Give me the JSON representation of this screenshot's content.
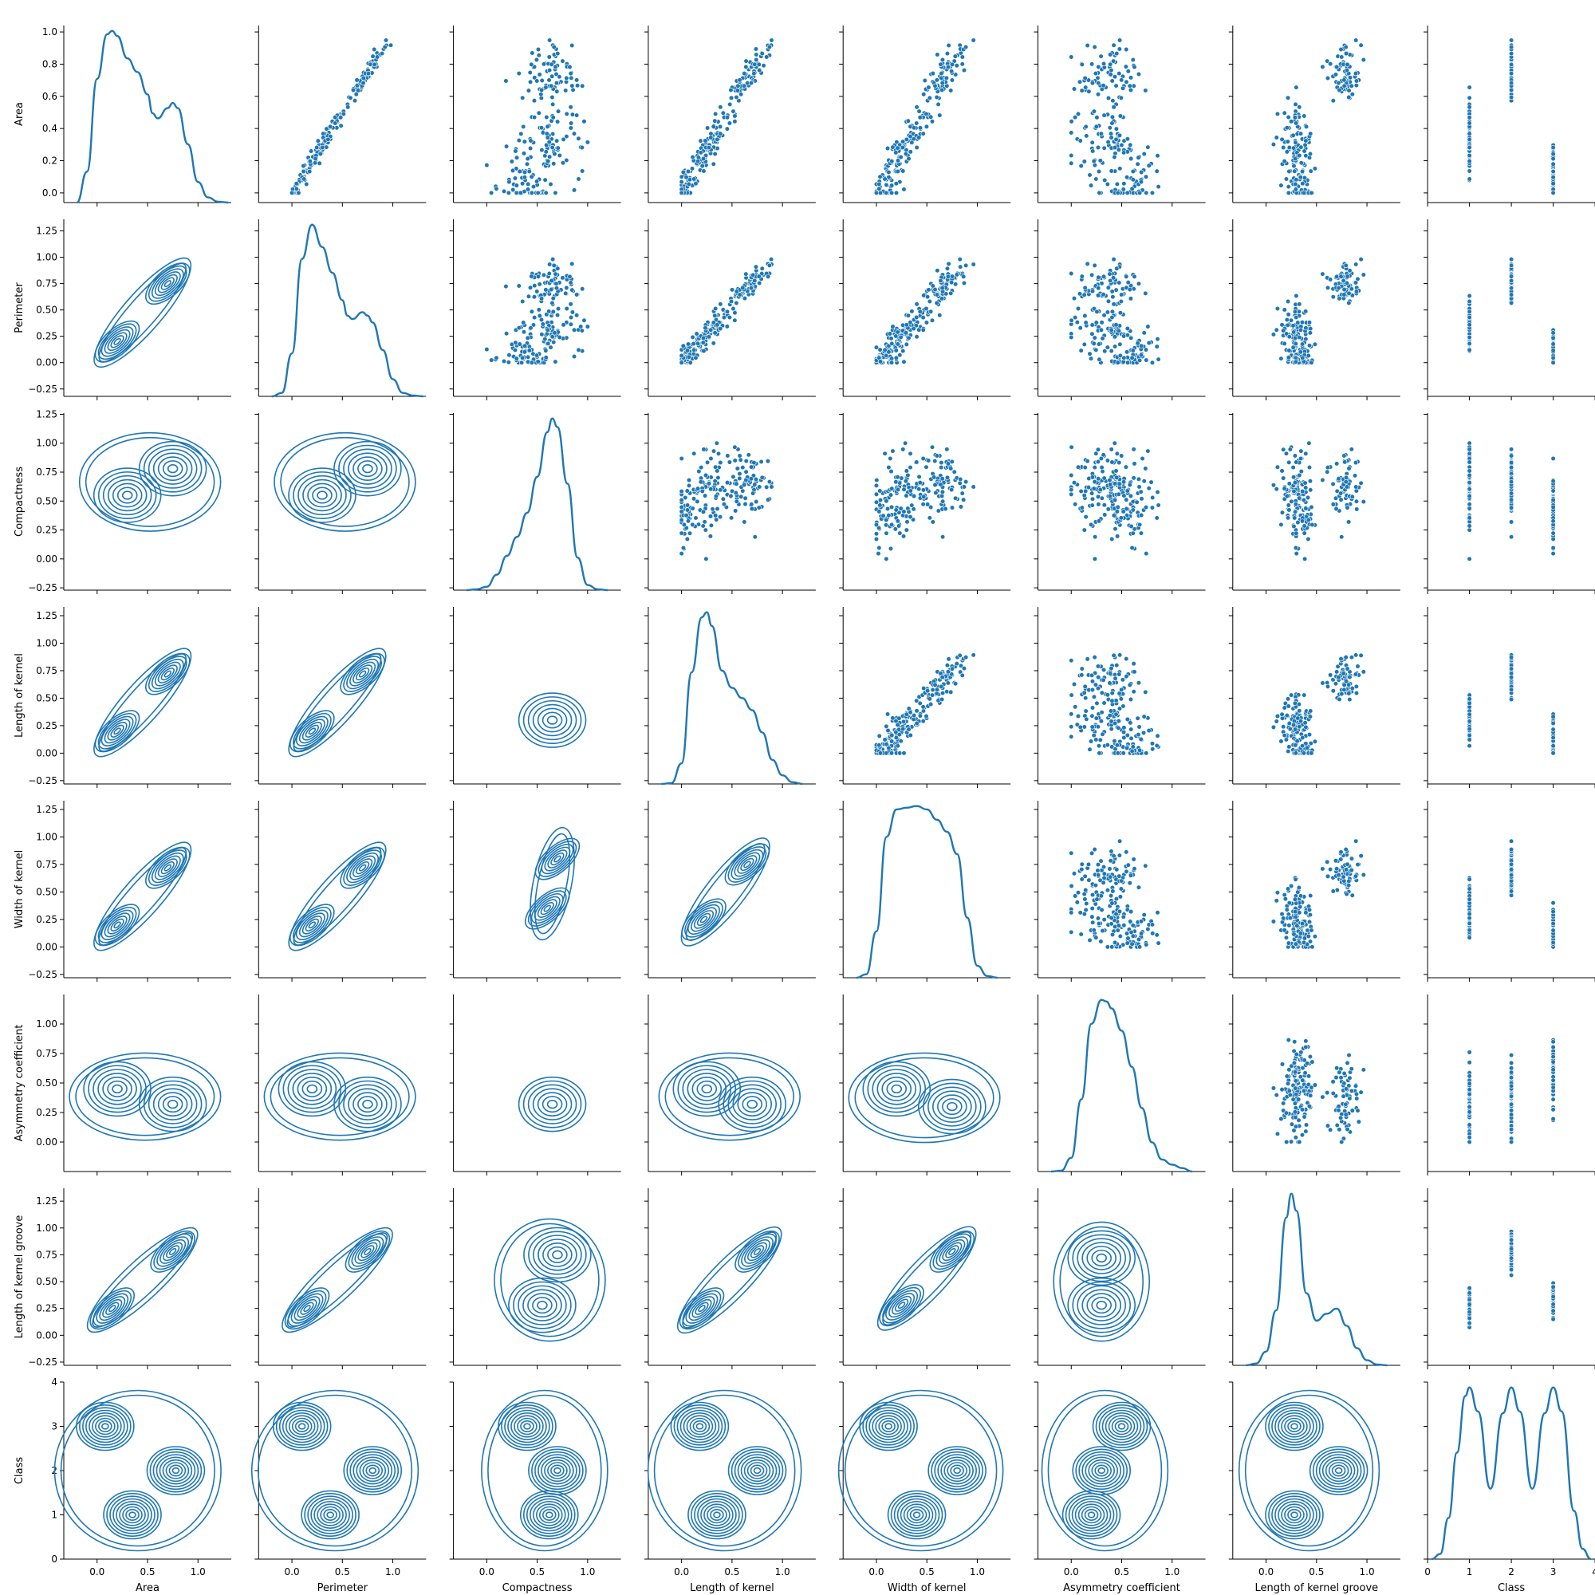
{
  "chart_data": {
    "type": "pairplot",
    "title": "",
    "series_color": "#1f77b4",
    "variables": [
      "Area",
      "Perimeter",
      "Compactness",
      "Length of kernel",
      "Width of kernel",
      "Asymmetry coefficient",
      "Length of kernel groove",
      "Class"
    ],
    "axes": {
      "x": [
        {
          "lim": [
            -0.33,
            1.33
          ],
          "ticks": [
            "0.0",
            "0.5",
            "1.0"
          ]
        },
        {
          "lim": [
            -0.33,
            1.33
          ],
          "ticks": [
            "0.0",
            "0.5",
            "1.0"
          ]
        },
        {
          "lim": [
            -0.33,
            1.33
          ],
          "ticks": [
            "0.0",
            "0.5",
            "1.0"
          ]
        },
        {
          "lim": [
            -0.33,
            1.33
          ],
          "ticks": [
            "0.0",
            "0.5",
            "1.0"
          ]
        },
        {
          "lim": [
            -0.33,
            1.33
          ],
          "ticks": [
            "0.0",
            "0.5",
            "1.0"
          ]
        },
        {
          "lim": [
            -0.33,
            1.33
          ],
          "ticks": [
            "0.0",
            "0.5",
            "1.0"
          ]
        },
        {
          "lim": [
            -0.33,
            1.33
          ],
          "ticks": [
            "0.0",
            "0.5",
            "1.0"
          ]
        },
        {
          "lim": [
            0.0,
            4.0
          ],
          "ticks": [
            "0",
            "1",
            "2",
            "3",
            "4"
          ]
        }
      ],
      "y": [
        {
          "lim": [
            -0.06,
            1.04
          ],
          "ticks": [
            "0.0",
            "0.2",
            "0.4",
            "0.6",
            "0.8",
            "1.0"
          ]
        },
        {
          "lim": [
            -0.32,
            1.36
          ],
          "ticks": [
            "−0.25",
            "0.00",
            "0.25",
            "0.50",
            "0.75",
            "1.00",
            "1.25"
          ]
        },
        {
          "lim": [
            -0.27,
            1.26
          ],
          "ticks": [
            "−0.25",
            "0.00",
            "0.25",
            "0.50",
            "0.75",
            "1.00",
            "1.25"
          ]
        },
        {
          "lim": [
            -0.28,
            1.33
          ],
          "ticks": [
            "−0.25",
            "0.00",
            "0.25",
            "0.50",
            "0.75",
            "1.00",
            "1.25"
          ]
        },
        {
          "lim": [
            -0.28,
            1.33
          ],
          "ticks": [
            "−0.25",
            "0.00",
            "0.25",
            "0.50",
            "0.75",
            "1.00",
            "1.25"
          ]
        },
        {
          "lim": [
            -0.25,
            1.25
          ],
          "ticks": [
            "0.00",
            "0.25",
            "0.50",
            "0.75",
            "1.00"
          ]
        },
        {
          "lim": [
            -0.28,
            1.37
          ],
          "ticks": [
            "−0.25",
            "0.00",
            "0.25",
            "0.50",
            "0.75",
            "1.00",
            "1.25"
          ]
        },
        {
          "lim": [
            0.0,
            4.0
          ],
          "ticks": [
            "0",
            "1",
            "2",
            "3",
            "4"
          ]
        }
      ]
    },
    "diagonal_kde": [
      {
        "x": [
          -0.2,
          -0.1,
          0.0,
          0.1,
          0.15,
          0.2,
          0.3,
          0.4,
          0.5,
          0.55,
          0.6,
          0.7,
          0.75,
          0.8,
          0.9,
          1.0,
          1.1,
          1.2,
          1.3
        ],
        "density": [
          0.0,
          0.18,
          0.72,
          0.98,
          1.0,
          0.97,
          0.84,
          0.76,
          0.63,
          0.52,
          0.49,
          0.55,
          0.58,
          0.55,
          0.34,
          0.12,
          0.03,
          0.005,
          0.0
        ]
      },
      {
        "x": [
          -0.2,
          -0.1,
          0.0,
          0.1,
          0.2,
          0.3,
          0.4,
          0.5,
          0.55,
          0.6,
          0.7,
          0.75,
          0.8,
          0.9,
          1.0,
          1.1,
          1.2,
          1.3
        ],
        "density": [
          0.0,
          0.02,
          0.25,
          0.8,
          1.0,
          0.87,
          0.72,
          0.56,
          0.47,
          0.45,
          0.49,
          0.47,
          0.43,
          0.27,
          0.1,
          0.02,
          0.005,
          0.0
        ]
      },
      {
        "x": [
          -0.2,
          -0.1,
          0.0,
          0.1,
          0.2,
          0.3,
          0.4,
          0.5,
          0.6,
          0.65,
          0.7,
          0.8,
          0.9,
          1.0,
          1.1,
          1.2
        ],
        "density": [
          0.0,
          0.005,
          0.02,
          0.09,
          0.2,
          0.31,
          0.45,
          0.66,
          0.92,
          1.0,
          0.95,
          0.62,
          0.19,
          0.03,
          0.005,
          0.0
        ]
      },
      {
        "x": [
          -0.2,
          -0.1,
          0.0,
          0.1,
          0.2,
          0.25,
          0.3,
          0.4,
          0.5,
          0.6,
          0.7,
          0.8,
          0.9,
          1.0,
          1.1,
          1.2
        ],
        "density": [
          0.0,
          0.005,
          0.12,
          0.65,
          0.97,
          1.0,
          0.92,
          0.66,
          0.56,
          0.5,
          0.43,
          0.3,
          0.14,
          0.05,
          0.01,
          0.0
        ]
      },
      {
        "x": [
          -0.2,
          -0.1,
          0.0,
          0.1,
          0.2,
          0.3,
          0.4,
          0.5,
          0.6,
          0.7,
          0.8,
          0.9,
          1.0,
          1.1,
          1.2
        ],
        "density": [
          0.0,
          0.02,
          0.27,
          0.82,
          0.98,
          0.99,
          1.0,
          0.98,
          0.92,
          0.85,
          0.72,
          0.35,
          0.07,
          0.01,
          0.0
        ]
      },
      {
        "x": [
          -0.2,
          -0.1,
          0.0,
          0.1,
          0.2,
          0.3,
          0.35,
          0.4,
          0.5,
          0.6,
          0.7,
          0.8,
          0.9,
          1.0,
          1.1,
          1.2
        ],
        "density": [
          0.0,
          0.005,
          0.08,
          0.42,
          0.86,
          1.0,
          0.99,
          0.95,
          0.82,
          0.61,
          0.37,
          0.17,
          0.07,
          0.04,
          0.02,
          0.0
        ]
      },
      {
        "x": [
          -0.2,
          -0.1,
          0.0,
          0.1,
          0.2,
          0.25,
          0.3,
          0.4,
          0.5,
          0.6,
          0.7,
          0.8,
          0.9,
          1.0,
          1.1,
          1.2
        ],
        "density": [
          0.0,
          0.01,
          0.08,
          0.32,
          0.86,
          1.0,
          0.9,
          0.42,
          0.26,
          0.3,
          0.33,
          0.23,
          0.1,
          0.03,
          0.005,
          0.0
        ]
      },
      {
        "x": [
          0.1,
          0.3,
          0.5,
          0.7,
          0.9,
          1.0,
          1.2,
          1.5,
          1.8,
          2.0,
          2.2,
          2.5,
          2.8,
          3.0,
          3.2,
          3.5,
          3.7,
          3.9
        ],
        "density": [
          0.0,
          0.03,
          0.24,
          0.62,
          0.95,
          1.0,
          0.86,
          0.41,
          0.85,
          1.0,
          0.86,
          0.41,
          0.85,
          1.0,
          0.86,
          0.28,
          0.06,
          0.0
        ]
      }
    ],
    "upper_scatter": {
      "n_points": 210,
      "pairs": [
        {
          "row": 0,
          "col": 1,
          "relationship": "strong-linear"
        },
        {
          "row": 0,
          "col": 2,
          "relationship": "fan"
        },
        {
          "row": 0,
          "col": 3,
          "relationship": "linear"
        },
        {
          "row": 0,
          "col": 4,
          "relationship": "linear"
        },
        {
          "row": 0,
          "col": 5,
          "relationship": "weak-negative"
        },
        {
          "row": 0,
          "col": 6,
          "relationship": "two-cluster"
        },
        {
          "row": 0,
          "col": 7,
          "relationship": "by-class"
        },
        {
          "row": 1,
          "col": 2,
          "relationship": "fan"
        },
        {
          "row": 1,
          "col": 3,
          "relationship": "linear"
        },
        {
          "row": 1,
          "col": 4,
          "relationship": "linear"
        },
        {
          "row": 1,
          "col": 5,
          "relationship": "weak-negative"
        },
        {
          "row": 1,
          "col": 6,
          "relationship": "two-cluster"
        },
        {
          "row": 1,
          "col": 7,
          "relationship": "by-class"
        },
        {
          "row": 2,
          "col": 3,
          "relationship": "cloud"
        },
        {
          "row": 2,
          "col": 4,
          "relationship": "curved"
        },
        {
          "row": 2,
          "col": 5,
          "relationship": "weak-negative"
        },
        {
          "row": 2,
          "col": 6,
          "relationship": "two-cluster"
        },
        {
          "row": 2,
          "col": 7,
          "relationship": "by-class"
        },
        {
          "row": 3,
          "col": 4,
          "relationship": "linear"
        },
        {
          "row": 3,
          "col": 5,
          "relationship": "weak-negative"
        },
        {
          "row": 3,
          "col": 6,
          "relationship": "linear"
        },
        {
          "row": 3,
          "col": 7,
          "relationship": "by-class"
        },
        {
          "row": 4,
          "col": 5,
          "relationship": "weak-negative"
        },
        {
          "row": 4,
          "col": 6,
          "relationship": "two-cluster"
        },
        {
          "row": 4,
          "col": 7,
          "relationship": "by-class"
        },
        {
          "row": 5,
          "col": 6,
          "relationship": "two-cluster"
        },
        {
          "row": 5,
          "col": 7,
          "relationship": "by-class"
        },
        {
          "row": 6,
          "col": 7,
          "relationship": "by-class"
        }
      ]
    },
    "lower_kde_contours": {
      "levels": 9,
      "pairs": [
        {
          "row": 1,
          "col": 0,
          "modes": [
            [
              0.2,
              0.2
            ],
            [
              0.7,
              0.75
            ]
          ],
          "shape": "diagonal"
        },
        {
          "row": 2,
          "col": 0,
          "modes": [
            [
              0.3,
              0.55
            ],
            [
              0.75,
              0.78
            ]
          ],
          "shape": "blob"
        },
        {
          "row": 2,
          "col": 1,
          "modes": [
            [
              0.3,
              0.55
            ],
            [
              0.75,
              0.78
            ]
          ],
          "shape": "blob"
        },
        {
          "row": 3,
          "col": 0,
          "modes": [
            [
              0.2,
              0.2
            ],
            [
              0.7,
              0.72
            ]
          ],
          "shape": "diagonal"
        },
        {
          "row": 3,
          "col": 1,
          "modes": [
            [
              0.2,
              0.2
            ],
            [
              0.7,
              0.72
            ]
          ],
          "shape": "diagonal"
        },
        {
          "row": 3,
          "col": 2,
          "modes": [
            [
              0.65,
              0.3
            ]
          ],
          "shape": "blob"
        },
        {
          "row": 4,
          "col": 0,
          "modes": [
            [
              0.2,
              0.2
            ],
            [
              0.7,
              0.72
            ]
          ],
          "shape": "diagonal"
        },
        {
          "row": 4,
          "col": 1,
          "modes": [
            [
              0.2,
              0.2
            ],
            [
              0.7,
              0.72
            ]
          ],
          "shape": "diagonal"
        },
        {
          "row": 4,
          "col": 2,
          "modes": [
            [
              0.6,
              0.35
            ],
            [
              0.7,
              0.8
            ]
          ],
          "shape": "diagonal"
        },
        {
          "row": 4,
          "col": 3,
          "modes": [
            [
              0.22,
              0.25
            ],
            [
              0.65,
              0.75
            ]
          ],
          "shape": "diagonal"
        },
        {
          "row": 5,
          "col": 0,
          "modes": [
            [
              0.2,
              0.45
            ],
            [
              0.75,
              0.32
            ]
          ],
          "shape": "blob"
        },
        {
          "row": 5,
          "col": 1,
          "modes": [
            [
              0.2,
              0.45
            ],
            [
              0.75,
              0.32
            ]
          ],
          "shape": "blob"
        },
        {
          "row": 5,
          "col": 2,
          "modes": [
            [
              0.65,
              0.32
            ]
          ],
          "shape": "blob"
        },
        {
          "row": 5,
          "col": 3,
          "modes": [
            [
              0.25,
              0.45
            ],
            [
              0.7,
              0.32
            ]
          ],
          "shape": "blob"
        },
        {
          "row": 5,
          "col": 4,
          "modes": [
            [
              0.2,
              0.45
            ],
            [
              0.75,
              0.3
            ]
          ],
          "shape": "blob"
        },
        {
          "row": 6,
          "col": 0,
          "modes": [
            [
              0.15,
              0.25
            ],
            [
              0.75,
              0.78
            ]
          ],
          "shape": "diagonal"
        },
        {
          "row": 6,
          "col": 1,
          "modes": [
            [
              0.15,
              0.25
            ],
            [
              0.75,
              0.78
            ]
          ],
          "shape": "diagonal"
        },
        {
          "row": 6,
          "col": 2,
          "modes": [
            [
              0.55,
              0.28
            ],
            [
              0.7,
              0.75
            ]
          ],
          "shape": "blob"
        },
        {
          "row": 6,
          "col": 3,
          "modes": [
            [
              0.2,
              0.25
            ],
            [
              0.75,
              0.78
            ]
          ],
          "shape": "diagonal"
        },
        {
          "row": 6,
          "col": 4,
          "modes": [
            [
              0.25,
              0.28
            ],
            [
              0.75,
              0.78
            ]
          ],
          "shape": "diagonal"
        },
        {
          "row": 6,
          "col": 5,
          "modes": [
            [
              0.3,
              0.28
            ],
            [
              0.3,
              0.72
            ]
          ],
          "shape": "blob"
        },
        {
          "row": 7,
          "col": 0,
          "modes": [
            [
              0.08,
              3.0
            ],
            [
              0.78,
              2.0
            ],
            [
              0.35,
              1.0
            ]
          ],
          "shape": "by-class"
        },
        {
          "row": 7,
          "col": 1,
          "modes": [
            [
              0.1,
              3.0
            ],
            [
              0.8,
              2.0
            ],
            [
              0.38,
              1.0
            ]
          ],
          "shape": "by-class"
        },
        {
          "row": 7,
          "col": 2,
          "modes": [
            [
              0.4,
              3.0
            ],
            [
              0.7,
              2.0
            ],
            [
              0.62,
              1.0
            ]
          ],
          "shape": "by-class"
        },
        {
          "row": 7,
          "col": 3,
          "modes": [
            [
              0.18,
              3.0
            ],
            [
              0.75,
              2.0
            ],
            [
              0.35,
              1.0
            ]
          ],
          "shape": "by-class"
        },
        {
          "row": 7,
          "col": 4,
          "modes": [
            [
              0.12,
              3.0
            ],
            [
              0.8,
              2.0
            ],
            [
              0.4,
              1.0
            ]
          ],
          "shape": "by-class"
        },
        {
          "row": 7,
          "col": 5,
          "modes": [
            [
              0.5,
              3.0
            ],
            [
              0.3,
              2.0
            ],
            [
              0.2,
              1.0
            ]
          ],
          "shape": "by-class"
        },
        {
          "row": 7,
          "col": 6,
          "modes": [
            [
              0.28,
              3.0
            ],
            [
              0.72,
              2.0
            ],
            [
              0.28,
              1.0
            ]
          ],
          "shape": "by-class"
        }
      ]
    }
  }
}
